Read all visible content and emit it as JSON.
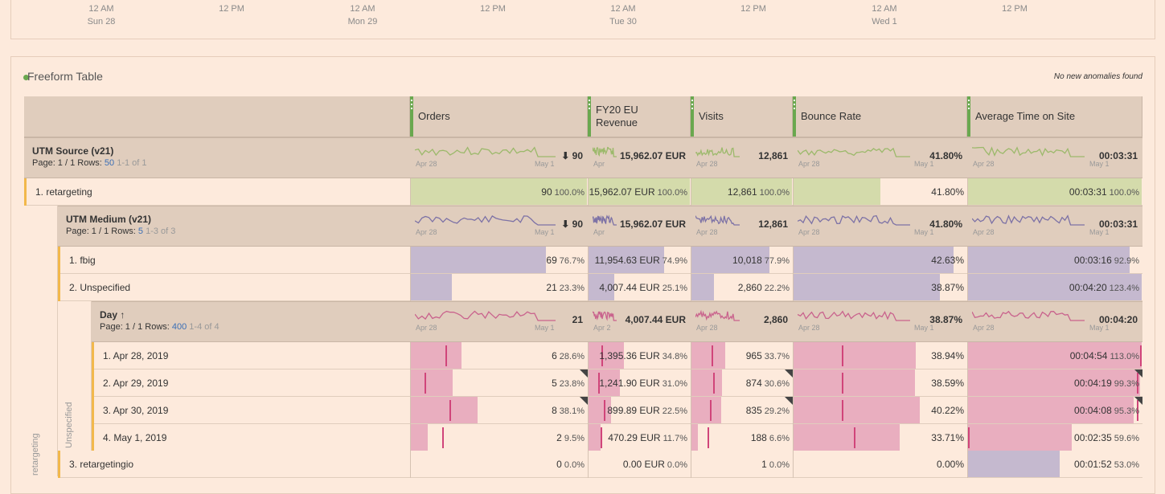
{
  "timeline": {
    "ticks": [
      {
        "time": "12 AM",
        "day": "Sun 28"
      },
      {
        "time": "12 PM",
        "day": ""
      },
      {
        "time": "12 AM",
        "day": "Mon 29"
      },
      {
        "time": "12 PM",
        "day": ""
      },
      {
        "time": "12 AM",
        "day": "Tue 30"
      },
      {
        "time": "12 PM",
        "day": ""
      },
      {
        "time": "12 AM",
        "day": "Wed 1"
      },
      {
        "time": "12 PM",
        "day": ""
      }
    ]
  },
  "panel": {
    "title": "Freeform Table",
    "anomaly_text": "No new anomalies found"
  },
  "columns": [
    "Orders",
    "FY20 EU Revenue",
    "Visits",
    "Bounce Rate",
    "Average Time on Site"
  ],
  "spark_axis": {
    "start": "Apr 28",
    "end": "May 1",
    "rev_start": "Apr",
    "rev_start_day": "Apr 2"
  },
  "dim1": {
    "title": "UTM Source (v21)",
    "page": "Page: 1 / 1",
    "rows_label": "Rows:",
    "rows": "50",
    "range": "1-1 of 1",
    "totals": {
      "orders": "90",
      "revenue": "15,962.07 EUR",
      "visits": "12,861",
      "bounce": "41.80%",
      "time": "00:03:31"
    },
    "items": [
      {
        "label": "1. retargeting",
        "orders": "90",
        "orders_pct": "100.0%",
        "revenue": "15,962.07 EUR",
        "revenue_pct": "100.0%",
        "visits": "12,861",
        "visits_pct": "100.0%",
        "bounce": "41.80%",
        "time": "00:03:31",
        "time_pct": "100.0%"
      }
    ]
  },
  "dim2": {
    "title": "UTM Medium (v21)",
    "page": "Page: 1 / 1",
    "rows_label": "Rows:",
    "rows": "5",
    "range": "1-3 of 3",
    "totals": {
      "orders": "90",
      "revenue": "15,962.07 EUR",
      "visits": "12,861",
      "bounce": "41.80%",
      "time": "00:03:31"
    },
    "items": [
      {
        "label": "1. fbig",
        "orders": "69",
        "orders_pct": "76.7%",
        "revenue": "11,954.63 EUR",
        "revenue_pct": "74.9%",
        "visits": "10,018",
        "visits_pct": "77.9%",
        "bounce": "42.63%",
        "time": "00:03:16",
        "time_pct": "92.9%"
      },
      {
        "label": "2. Unspecified",
        "orders": "21",
        "orders_pct": "23.3%",
        "revenue": "4,007.44 EUR",
        "revenue_pct": "25.1%",
        "visits": "2,860",
        "visits_pct": "22.2%",
        "bounce": "38.87%",
        "time": "00:04:20",
        "time_pct": "123.4%"
      },
      {
        "label": "3. retargetingio",
        "orders": "0",
        "orders_pct": "0.0%",
        "revenue": "0.00 EUR",
        "revenue_pct": "0.0%",
        "visits": "1",
        "visits_pct": "0.0%",
        "bounce": "0.00%",
        "time": "00:01:52",
        "time_pct": "53.0%"
      }
    ]
  },
  "dim3": {
    "title": "Day",
    "page": "Page: 1 / 1",
    "rows_label": "Rows:",
    "rows": "400",
    "range": "1-4 of 4",
    "totals": {
      "orders": "21",
      "revenue": "4,007.44 EUR",
      "visits": "2,860",
      "bounce": "38.87%",
      "time": "00:04:20"
    },
    "items": [
      {
        "label": "1. Apr 28, 2019",
        "orders": "6",
        "orders_pct": "28.6%",
        "revenue": "1,395.36 EUR",
        "revenue_pct": "34.8%",
        "visits": "965",
        "visits_pct": "33.7%",
        "bounce": "38.94%",
        "time": "00:04:54",
        "time_pct": "113.0%"
      },
      {
        "label": "2. Apr 29, 2019",
        "orders": "5",
        "orders_pct": "23.8%",
        "revenue": "1,241.90 EUR",
        "revenue_pct": "31.0%",
        "visits": "874",
        "visits_pct": "30.6%",
        "bounce": "38.59%",
        "time": "00:04:19",
        "time_pct": "99.3%"
      },
      {
        "label": "3. Apr 30, 2019",
        "orders": "8",
        "orders_pct": "38.1%",
        "revenue": "899.89 EUR",
        "revenue_pct": "22.5%",
        "visits": "835",
        "visits_pct": "29.2%",
        "bounce": "40.22%",
        "time": "00:04:08",
        "time_pct": "95.3%"
      },
      {
        "label": "4. May 1, 2019",
        "orders": "2",
        "orders_pct": "9.5%",
        "revenue": "470.29 EUR",
        "revenue_pct": "11.7%",
        "visits": "188",
        "visits_pct": "6.6%",
        "bounce": "33.71%",
        "time": "00:02:35",
        "time_pct": "59.6%"
      }
    ]
  },
  "side_labels": {
    "outer": "retargeting",
    "inner": "Unspecified"
  },
  "colors": {
    "green_bar": "#d4dbab",
    "purple_bar": "#c5b9cf",
    "pink_bar": "#e9aebf",
    "pink_line": "#d0457a",
    "green_spark": "#9cb96b",
    "purple_spark": "#7d72a6",
    "pink_spark": "#c9638d",
    "accent_yellow": "#f2b84b"
  }
}
